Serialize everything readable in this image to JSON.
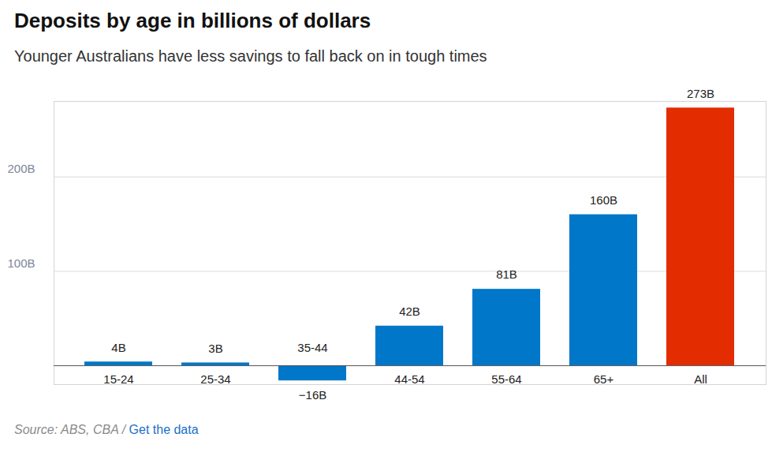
{
  "chart_data": {
    "type": "bar",
    "title": "Deposits by age in billions of dollars",
    "subtitle": "Younger Australians have less savings to fall back on in tough times",
    "source": "Source: ABS, CBA /",
    "source_link": "Get the data",
    "categories": [
      "15-24",
      "25-34",
      "35-44",
      "44-54",
      "55-64",
      "65+",
      "All"
    ],
    "values": [
      4,
      3,
      -16,
      42,
      81,
      160,
      273
    ],
    "value_labels": [
      "4B",
      "3B",
      "−16B",
      "42B",
      "81B",
      "160B",
      "273B"
    ],
    "colors": [
      "#0077c8",
      "#0077c8",
      "#0077c8",
      "#0077c8",
      "#0077c8",
      "#0077c8",
      "#e32c00"
    ],
    "ylim": [
      -20,
      280
    ],
    "yticks": [
      {
        "value": 100,
        "label": "100B"
      },
      {
        "value": 200,
        "label": "200B"
      }
    ],
    "grid": true,
    "data_labels": true
  }
}
